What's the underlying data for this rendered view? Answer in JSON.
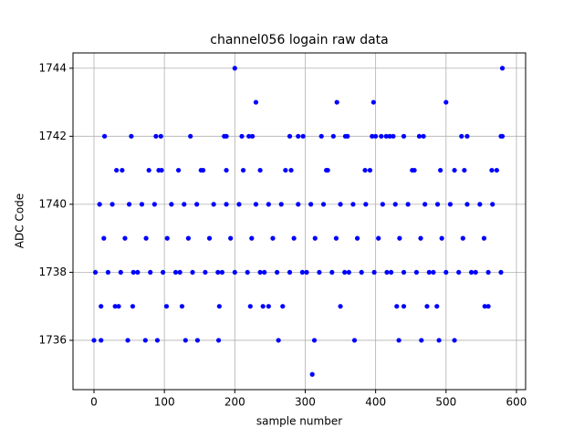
{
  "chart_data": {
    "type": "scatter",
    "title": "channel056 logain raw data",
    "x_label": "sample number",
    "y_label": "ADC Code",
    "color": "#0000ff",
    "grid": true,
    "xlim": [
      -29.8,
      613
    ],
    "ylim": [
      1734.55,
      1744.45
    ],
    "xticks": [
      0,
      100,
      200,
      300,
      400,
      500,
      600
    ],
    "yticks": [
      1736,
      1738,
      1740,
      1742,
      1744
    ],
    "x": [
      2,
      8,
      14,
      20,
      26,
      32,
      38,
      44,
      50,
      56,
      62,
      68,
      74,
      80,
      86,
      92,
      98,
      104,
      110,
      116,
      122,
      128,
      134,
      140,
      146,
      152,
      158,
      164,
      170,
      176,
      182,
      188,
      194,
      200,
      206,
      212,
      218,
      224,
      230,
      236,
      242,
      248,
      254,
      260,
      266,
      272,
      278,
      284,
      290,
      296,
      302,
      308,
      314,
      320,
      326,
      332,
      338,
      344,
      350,
      356,
      362,
      368,
      374,
      380,
      386,
      392,
      398,
      404,
      410,
      416,
      422,
      428,
      434,
      440,
      446,
      452,
      458,
      464,
      470,
      476,
      482,
      488,
      494,
      500,
      506,
      512,
      518,
      524,
      530,
      536,
      542,
      548,
      554,
      560,
      566,
      572,
      578,
      200,
      580,
      230,
      345,
      397,
      500,
      310,
      0,
      10,
      48,
      73,
      90,
      130,
      147,
      177,
      262,
      313,
      370,
      433,
      465,
      490,
      512,
      10,
      30,
      35,
      55,
      103,
      125,
      178,
      222,
      240,
      248,
      268,
      350,
      430,
      440,
      473,
      487,
      555,
      560,
      15,
      53,
      88,
      95,
      137,
      185,
      188,
      210,
      220,
      225,
      278,
      290,
      297,
      323,
      340,
      357,
      360,
      395,
      400,
      408,
      415,
      420,
      425,
      440,
      462,
      468,
      522,
      530,
      578,
      580,
      40,
      78,
      96,
      120,
      155,
      188,
      236,
      280,
      330,
      385,
      455,
      492,
      526,
      565
    ],
    "values": [
      1738,
      1740,
      1739,
      1738,
      1740,
      1741,
      1738,
      1739,
      1740,
      1738,
      1738,
      1740,
      1739,
      1738,
      1740,
      1741,
      1738,
      1739,
      1740,
      1738,
      1738,
      1740,
      1739,
      1738,
      1740,
      1741,
      1738,
      1739,
      1740,
      1738,
      1738,
      1740,
      1739,
      1738,
      1740,
      1741,
      1738,
      1739,
      1740,
      1738,
      1738,
      1740,
      1739,
      1738,
      1740,
      1741,
      1738,
      1739,
      1740,
      1738,
      1738,
      1740,
      1739,
      1738,
      1740,
      1741,
      1738,
      1739,
      1740,
      1738,
      1738,
      1740,
      1739,
      1738,
      1740,
      1741,
      1738,
      1739,
      1740,
      1738,
      1738,
      1740,
      1739,
      1738,
      1740,
      1741,
      1738,
      1739,
      1740,
      1738,
      1738,
      1740,
      1739,
      1738,
      1740,
      1741,
      1738,
      1739,
      1740,
      1738,
      1738,
      1740,
      1739,
      1738,
      1740,
      1741,
      1738,
      1744,
      1744,
      1743,
      1743,
      1743,
      1743,
      1735,
      1736,
      1736,
      1736,
      1736,
      1736,
      1736,
      1736,
      1736,
      1736,
      1736,
      1736,
      1736,
      1736,
      1736,
      1736,
      1737,
      1737,
      1737,
      1737,
      1737,
      1737,
      1737,
      1737,
      1737,
      1737,
      1737,
      1737,
      1737,
      1737,
      1737,
      1737,
      1737,
      1737,
      1742,
      1742,
      1742,
      1742,
      1742,
      1742,
      1742,
      1742,
      1742,
      1742,
      1742,
      1742,
      1742,
      1742,
      1742,
      1742,
      1742,
      1742,
      1742,
      1742,
      1742,
      1742,
      1742,
      1742,
      1742,
      1742,
      1742,
      1742,
      1742,
      1742,
      1741,
      1741,
      1741,
      1741,
      1741,
      1741,
      1741,
      1741,
      1741,
      1741,
      1741,
      1741,
      1741,
      1741
    ]
  }
}
